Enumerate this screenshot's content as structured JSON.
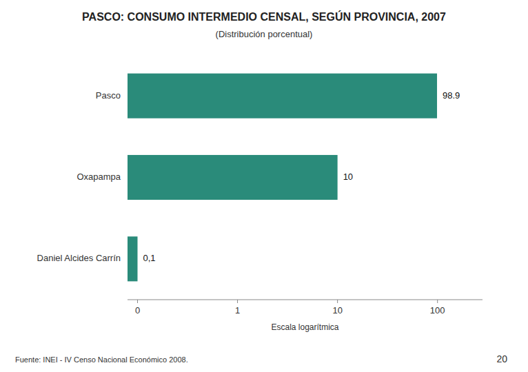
{
  "chart_data": {
    "type": "bar",
    "orientation": "horizontal",
    "title": "PASCO: CONSUMO INTERMEDIO CENSAL, SEGÚN PROVINCIA, 2007",
    "subtitle": "(Distribución porcentual)",
    "x_label": "Escala logarítmica",
    "categories": [
      "Pasco",
      "Oxapampa",
      "Daniel Alcides Carrín"
    ],
    "values": [
      98.9,
      10.0,
      0.1
    ],
    "value_labels": [
      "98.9",
      "10",
      "0,1"
    ],
    "data_labels": true,
    "color": "#2a8b7a",
    "log": "x",
    "xlim": [
      0.0794328234724281,
      281.838293126445
    ],
    "xticks": [
      {
        "value": 0.1,
        "label": "0"
      },
      1,
      10,
      100
    ],
    "grid": false,
    "annotations": [
      "Fuente: INEI - IV Censo Nacional Económico 2008.",
      "20"
    ]
  }
}
